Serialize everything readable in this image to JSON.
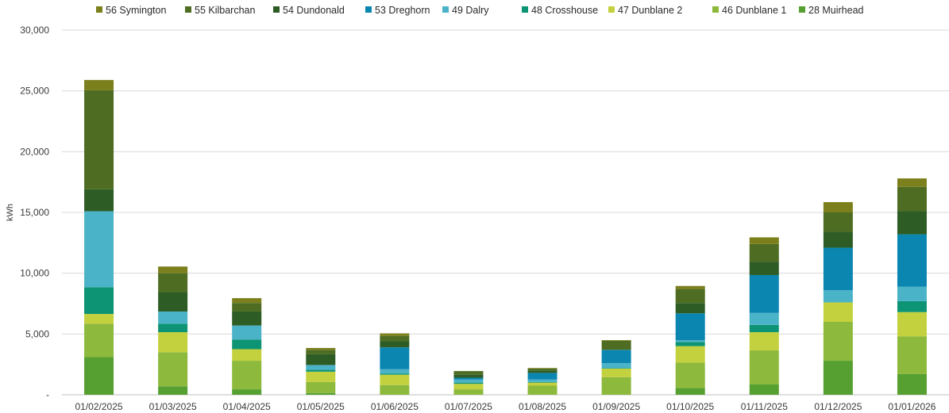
{
  "chart_data": {
    "type": "bar",
    "stacked": true,
    "title": "",
    "xlabel": "",
    "ylabel": "kWh",
    "ylim": [
      0,
      30000
    ],
    "yticks": [
      0,
      5000,
      10000,
      15000,
      20000,
      25000,
      30000
    ],
    "ytick_labels": [
      "-",
      "5,000",
      "10,000",
      "15,000",
      "20,000",
      "25,000",
      "30,000"
    ],
    "grid": true,
    "legend_position": "top",
    "categories": [
      "01/02/2025",
      "01/03/2025",
      "01/04/2025",
      "01/05/2025",
      "01/06/2025",
      "01/07/2025",
      "01/08/2025",
      "01/09/2025",
      "01/10/2025",
      "01/11/2025",
      "01/12/2025",
      "01/01/2026"
    ],
    "series": [
      {
        "name": "28 Muirhead",
        "color": "#56a032",
        "values": [
          3100,
          700,
          450,
          150,
          0,
          0,
          0,
          0,
          550,
          850,
          2800,
          1700
        ]
      },
      {
        "name": "46 Dunblane 1",
        "color": "#8db93c",
        "values": [
          2750,
          2800,
          2350,
          900,
          800,
          450,
          750,
          1450,
          2100,
          2800,
          3200,
          3100
        ]
      },
      {
        "name": "47 Dunblane 2",
        "color": "#c4d13e",
        "values": [
          800,
          1650,
          950,
          850,
          850,
          450,
          250,
          700,
          1350,
          1500,
          1600,
          2000
        ]
      },
      {
        "name": "48 Crosshouse",
        "color": "#0d9474",
        "values": [
          2200,
          700,
          800,
          150,
          100,
          100,
          50,
          50,
          350,
          600,
          0,
          900
        ]
      },
      {
        "name": "49 Dalry",
        "color": "#4bb3c8",
        "values": [
          6250,
          1000,
          1150,
          400,
          350,
          250,
          200,
          400,
          150,
          1000,
          1000,
          1200
        ]
      },
      {
        "name": "53 Dreghorn",
        "color": "#0b86b1",
        "values": [
          0,
          0,
          0,
          0,
          1800,
          150,
          550,
          1100,
          2200,
          3100,
          3500,
          4300
        ]
      },
      {
        "name": "54 Dundonald",
        "color": "#2e5c25",
        "values": [
          1800,
          1600,
          1150,
          900,
          500,
          250,
          200,
          0,
          850,
          1100,
          1300,
          1900
        ]
      },
      {
        "name": "55 Kilbarchan",
        "color": "#4e6d22",
        "values": [
          8150,
          1550,
          700,
          350,
          450,
          300,
          150,
          750,
          1150,
          1450,
          1600,
          2000
        ]
      },
      {
        "name": "56 Symington",
        "color": "#7b7f1c",
        "values": [
          850,
          550,
          400,
          150,
          200,
          0,
          50,
          50,
          250,
          550,
          850,
          700
        ]
      }
    ]
  }
}
